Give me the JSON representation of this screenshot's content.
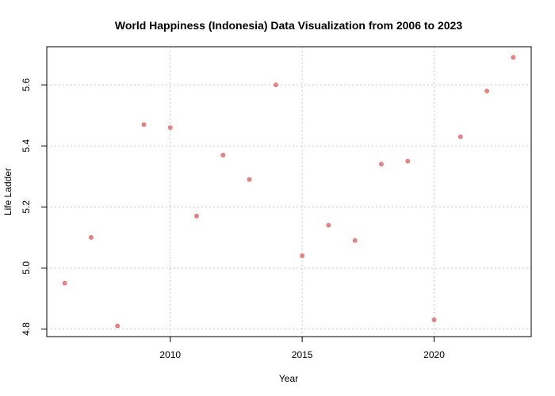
{
  "chart_data": {
    "type": "scatter",
    "title": "World Happiness (Indonesia) Data Visualization from 2006 to 2023",
    "xlabel": "Year",
    "ylabel": "Life Ladder",
    "x": [
      2006,
      2007,
      2008,
      2009,
      2010,
      2011,
      2012,
      2013,
      2014,
      2015,
      2016,
      2017,
      2018,
      2019,
      2020,
      2021,
      2022,
      2023
    ],
    "y": [
      4.95,
      5.1,
      4.81,
      5.47,
      5.46,
      5.17,
      5.37,
      5.29,
      5.6,
      5.04,
      5.14,
      5.09,
      5.34,
      5.35,
      4.83,
      5.43,
      5.58,
      5.69
    ],
    "xlim": [
      2005.32,
      2023.68
    ],
    "ylim": [
      4.775,
      5.725
    ],
    "xticks": [
      2010,
      2015,
      2020
    ],
    "yticks": [
      4.8,
      5.0,
      5.2,
      5.4,
      5.6
    ],
    "xtick_labels": [
      "2010",
      "2015",
      "2020"
    ],
    "ytick_labels": [
      "4.8",
      "5.0",
      "5.2",
      "5.4",
      "5.6"
    ],
    "grid": true,
    "point_color": "#f08080",
    "point_stroke": "#e06a6a",
    "grid_color": "#c8c8c8"
  }
}
